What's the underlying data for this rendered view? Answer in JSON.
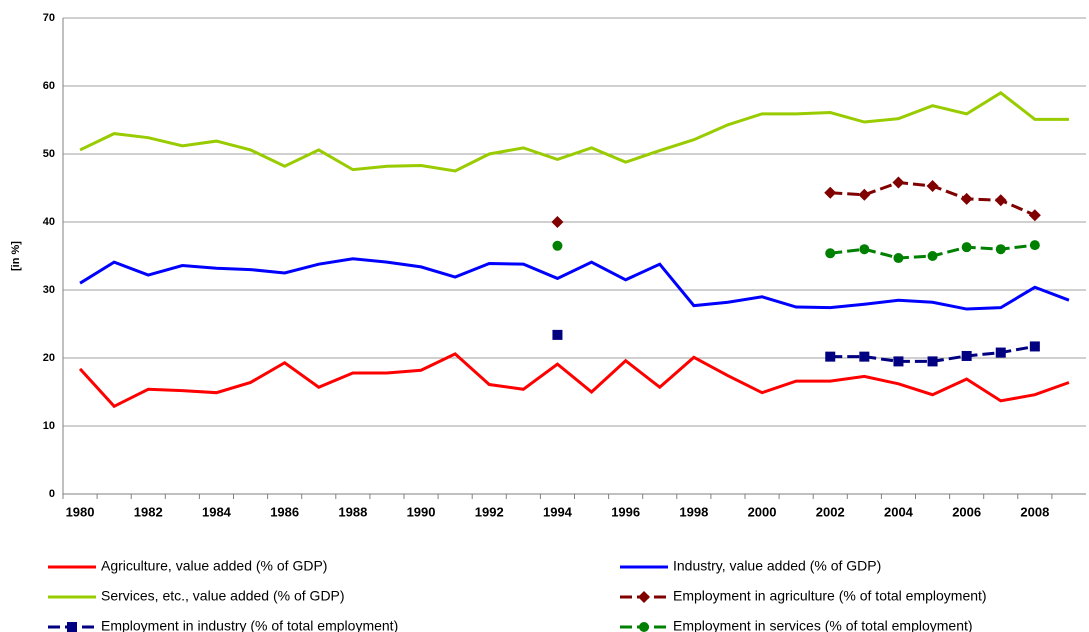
{
  "chart_data": {
    "type": "line",
    "y_label": "[in %]",
    "categories": [
      "1980",
      null,
      "1982",
      null,
      "1984",
      null,
      "1986",
      null,
      "1988",
      null,
      "1990",
      null,
      "1992",
      null,
      "1994",
      null,
      "1996",
      null,
      "1998",
      null,
      "2000",
      null,
      "2002",
      null,
      "2004",
      null,
      "2006",
      null,
      "2008",
      null
    ],
    "ylim": [
      0,
      70
    ],
    "yticks": [
      0,
      10,
      20,
      30,
      40,
      50,
      60,
      70
    ],
    "grid": true,
    "series": [
      {
        "name": "Agriculture, value added (% of GDP)",
        "color": "#ff0000",
        "dashed": false,
        "marker": "none",
        "values": [
          18.4,
          12.9,
          15.4,
          15.2,
          14.9,
          16.4,
          19.3,
          15.7,
          17.8,
          17.8,
          18.2,
          20.6,
          16.1,
          15.4,
          19.1,
          15.0,
          19.6,
          15.7,
          20.1,
          17.4,
          14.9,
          16.6,
          16.6,
          17.3,
          16.2,
          14.6,
          16.9,
          13.7,
          14.6,
          16.4
        ]
      },
      {
        "name": "Industry, value added (% of GDP)",
        "color": "#0000ff",
        "dashed": false,
        "marker": "none",
        "values": [
          31.0,
          34.1,
          32.2,
          33.6,
          33.2,
          33.0,
          32.5,
          33.8,
          34.6,
          34.1,
          33.4,
          31.9,
          33.9,
          33.8,
          31.7,
          34.1,
          31.5,
          33.8,
          27.7,
          28.2,
          29.0,
          27.5,
          27.4,
          27.9,
          28.5,
          28.2,
          27.2,
          27.4,
          30.4,
          28.5
        ]
      },
      {
        "name": "Services, etc., value added (% of GDP)",
        "color": "#99cc00",
        "dashed": false,
        "marker": "none",
        "values": [
          50.6,
          53.0,
          52.4,
          51.2,
          51.9,
          50.6,
          48.2,
          50.6,
          47.7,
          48.2,
          48.3,
          47.5,
          50.0,
          50.9,
          49.2,
          50.9,
          48.8,
          50.5,
          52.1,
          54.3,
          55.9,
          55.9,
          56.1,
          54.7,
          55.2,
          57.1,
          55.9,
          59.0,
          55.1,
          55.1
        ]
      },
      {
        "name": "Employment in agriculture (% of total employment)",
        "color": "#800000",
        "dashed": true,
        "marker": "diamond",
        "values": [
          null,
          null,
          null,
          null,
          null,
          null,
          null,
          null,
          null,
          null,
          null,
          null,
          null,
          null,
          40.0,
          null,
          null,
          null,
          null,
          null,
          null,
          null,
          44.3,
          44.0,
          45.8,
          45.3,
          43.4,
          43.2,
          41.0,
          null
        ]
      },
      {
        "name": "Employment in industry (% of total employment)",
        "color": "#000080",
        "dashed": true,
        "marker": "square",
        "values": [
          null,
          null,
          null,
          null,
          null,
          null,
          null,
          null,
          null,
          null,
          null,
          null,
          null,
          null,
          23.4,
          null,
          null,
          null,
          null,
          null,
          null,
          null,
          20.2,
          20.2,
          19.5,
          19.5,
          20.3,
          20.8,
          21.7,
          null
        ]
      },
      {
        "name": "Employment in services (% of total employment)",
        "color": "#008000",
        "dashed": true,
        "marker": "circle",
        "values": [
          null,
          null,
          null,
          null,
          null,
          null,
          null,
          null,
          null,
          null,
          null,
          null,
          null,
          null,
          36.5,
          null,
          null,
          null,
          null,
          null,
          null,
          null,
          35.4,
          36.0,
          34.7,
          35.0,
          36.3,
          36.0,
          36.6,
          null
        ]
      }
    ]
  }
}
